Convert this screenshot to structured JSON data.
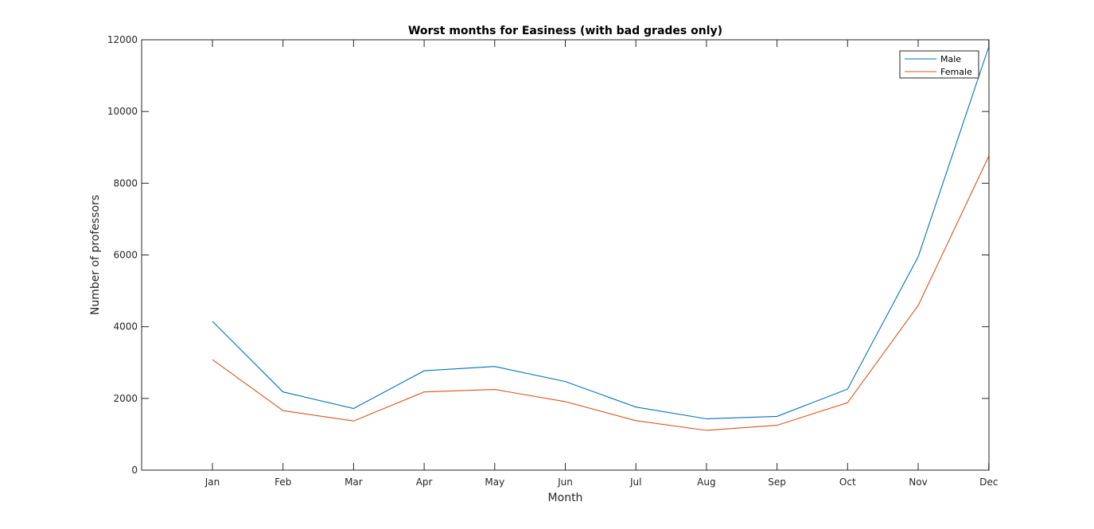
{
  "chart_data": {
    "type": "line",
    "title": "Worst months for Easiness (with bad grades only)",
    "xlabel": "Month",
    "ylabel": "Number of professors",
    "categories": [
      "Jan",
      "Feb",
      "Mar",
      "Apr",
      "May",
      "Jun",
      "Jul",
      "Aug",
      "Sep",
      "Oct",
      "Nov",
      "Dec"
    ],
    "ylim": [
      0,
      12000
    ],
    "yticks": [
      0,
      2000,
      4000,
      6000,
      8000,
      10000,
      12000
    ],
    "grid": false,
    "legend_position": "top-right",
    "series": [
      {
        "name": "Male",
        "color": "#0072BD",
        "values": [
          4150,
          2180,
          1720,
          2770,
          2890,
          2470,
          1760,
          1430,
          1500,
          2260,
          5950,
          11800
        ]
      },
      {
        "name": "Female",
        "color": "#D95319",
        "values": [
          3080,
          1660,
          1370,
          2180,
          2250,
          1910,
          1380,
          1110,
          1250,
          1880,
          4590,
          8750
        ]
      }
    ]
  }
}
